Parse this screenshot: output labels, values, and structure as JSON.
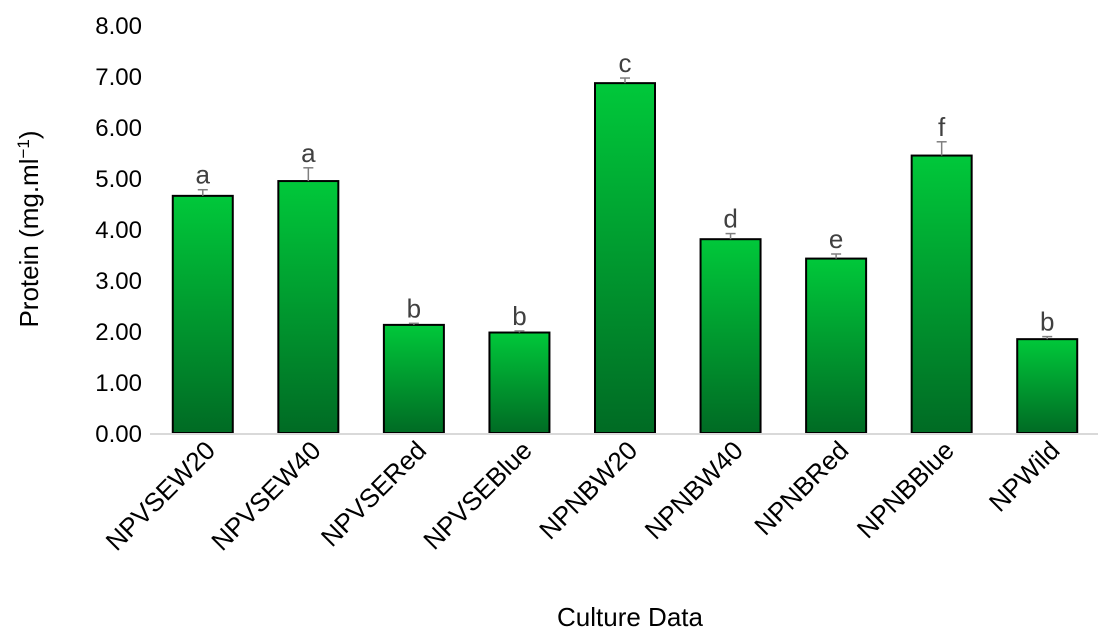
{
  "chart_data": {
    "type": "bar",
    "title": "",
    "xlabel": "Culture Data",
    "ylabel_main": "Protein (mg.ml",
    "ylabel_sup": "−1",
    "ylabel_close": ")",
    "ylim": [
      0,
      8
    ],
    "yticks": [
      0,
      1,
      2,
      3,
      4,
      5,
      6,
      7,
      8
    ],
    "ytick_labels": [
      "0.00",
      "1.00",
      "2.00",
      "3.00",
      "4.00",
      "5.00",
      "6.00",
      "7.00",
      "8.00"
    ],
    "categories": [
      "NPVSEW20",
      "NPVSEW40",
      "NPVSERed",
      "NPVSEBlue",
      "NPNBW20",
      "NPNBW40",
      "NPNBRed",
      "NPNBBlue",
      "NPWild"
    ],
    "values": [
      4.65,
      4.94,
      2.12,
      1.97,
      6.86,
      3.8,
      3.42,
      5.44,
      1.84
    ],
    "errors": [
      0.12,
      0.26,
      0.03,
      0.03,
      0.1,
      0.11,
      0.09,
      0.27,
      0.05
    ],
    "significance": [
      "a",
      "a",
      "b",
      "b",
      "c",
      "d",
      "e",
      "f",
      "b"
    ],
    "grid": false,
    "legend": "none",
    "colors": {
      "bar_top": "#00c83a",
      "bar_bottom": "#006b24",
      "bar_edge": "#000000",
      "error_bar": "#7f7f7f",
      "axis": "#d9d9d9",
      "sig_text": "#404040"
    }
  }
}
